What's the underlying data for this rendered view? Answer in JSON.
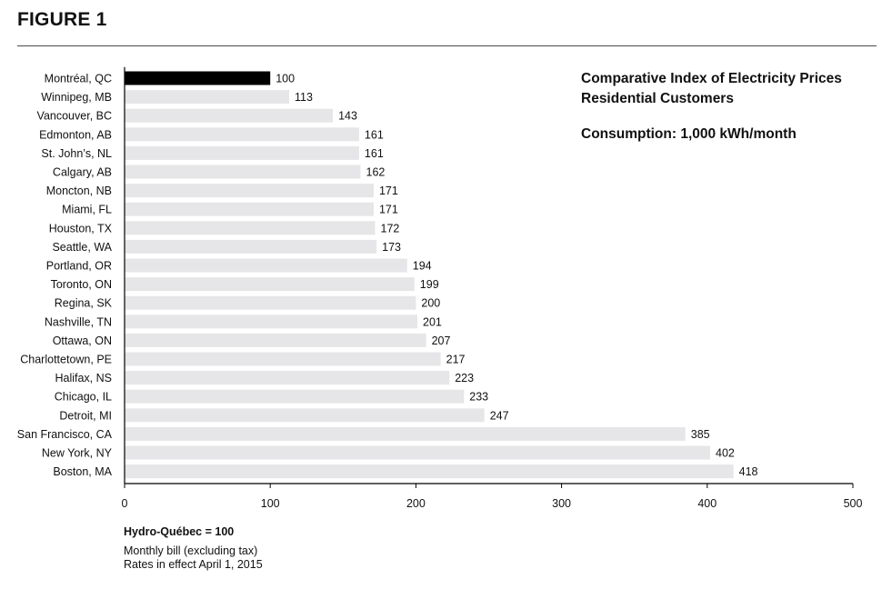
{
  "header": {
    "figure_label": "FIGURE 1"
  },
  "chart_data": {
    "type": "bar",
    "orientation": "horizontal",
    "title_lines": [
      "Comparative Index of Electricity Prices",
      "Residential Customers"
    ],
    "subtitle": "Consumption: 1,000 kWh/month",
    "categories": [
      "Montréal, QC",
      "Winnipeg, MB",
      "Vancouver, BC",
      "Edmonton, AB",
      "St. John’s, NL",
      "Calgary, AB",
      "Moncton, NB",
      "Miami, FL",
      "Houston, TX",
      "Seattle, WA",
      "Portland, OR",
      "Toronto, ON",
      "Regina, SK",
      "Nashville, TN",
      "Ottawa, ON",
      "Charlottetown, PE",
      "Halifax, NS",
      "Chicago, IL",
      "Detroit, MI",
      "San Francisco, CA",
      "New York, NY",
      "Boston, MA"
    ],
    "values": [
      100,
      113,
      143,
      161,
      161,
      162,
      171,
      171,
      172,
      173,
      194,
      199,
      200,
      201,
      207,
      217,
      223,
      233,
      247,
      385,
      402,
      418
    ],
    "xlim": [
      0,
      500
    ],
    "xticks": [
      0,
      100,
      200,
      300,
      400,
      500
    ],
    "xlabel": "",
    "ylabel": "",
    "grid": false,
    "legend": "none",
    "colors": {
      "highlight": "#000000",
      "bar": "#e6e6e8",
      "axis": "#000000",
      "text": "#111111"
    }
  },
  "footnotes": {
    "base": "Hydro-Québec = 100",
    "lines": [
      "Monthly bill (excluding tax)",
      "Rates in effect April 1, 2015"
    ]
  }
}
